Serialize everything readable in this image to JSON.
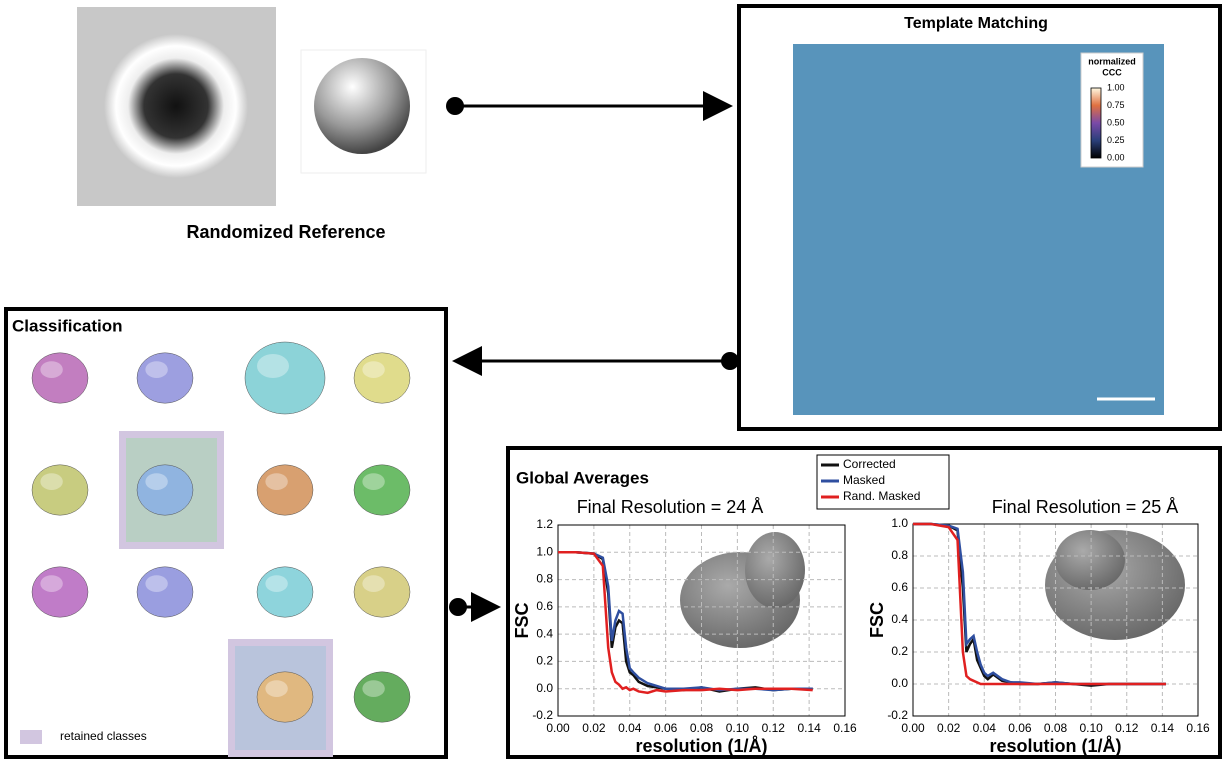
{
  "reference": {
    "label": "Randomized Reference"
  },
  "template_matching": {
    "title": "Template Matching",
    "colorbar_title": [
      "normalized",
      "CCC"
    ],
    "colorbar_ticks": [
      "1.00",
      "0.75",
      "0.50",
      "0.25",
      "0.00"
    ]
  },
  "classification": {
    "title": "Classification",
    "key_label": "retained classes"
  },
  "global_averages": {
    "title": "Global Averages"
  },
  "chart_data": [
    {
      "type": "line",
      "title": "Final Resolution =   24 Å",
      "x_label": "resolution (1/Å)",
      "y_label": "FSC",
      "x": [
        0,
        0.01,
        0.02,
        0.025,
        0.028,
        0.03,
        0.032,
        0.034,
        0.036,
        0.038,
        0.04,
        0.042,
        0.045,
        0.05,
        0.055,
        0.06,
        0.07,
        0.08,
        0.09,
        0.1,
        0.11,
        0.12,
        0.13,
        0.142
      ],
      "series": [
        {
          "name": "Corrected",
          "color": "#111111",
          "values": [
            1,
            1,
            0.99,
            0.95,
            0.7,
            0.3,
            0.45,
            0.5,
            0.48,
            0.2,
            0.12,
            0.1,
            0.05,
            0.02,
            0.01,
            0,
            -0.01,
            0.01,
            -0.02,
            0,
            0.01,
            -0.01,
            0,
            0
          ]
        },
        {
          "name": "Masked",
          "color": "#2f4fa0",
          "values": [
            1,
            1,
            0.99,
            0.96,
            0.75,
            0.35,
            0.5,
            0.57,
            0.55,
            0.3,
            0.15,
            0.12,
            0.08,
            0.04,
            0.02,
            0,
            0,
            0.01,
            -0.01,
            0,
            0,
            -0.01,
            0,
            0
          ]
        },
        {
          "name": "Rand. Masked",
          "color": "#e02020",
          "values": [
            1,
            1,
            0.99,
            0.9,
            0.3,
            0.12,
            0.05,
            0.03,
            0,
            0.01,
            -0.01,
            0,
            -0.02,
            -0.03,
            -0.01,
            -0.02,
            -0.01,
            -0.01,
            0,
            -0.01,
            0,
            0,
            0,
            -0.01
          ]
        }
      ],
      "xlim": [
        0,
        0.16
      ],
      "ylim": [
        -0.2,
        1.2
      ],
      "xticks": [
        {
          "value": 0,
          "label": "0.00"
        },
        {
          "value": 0.02,
          "label": "0.02"
        },
        {
          "value": 0.04,
          "label": "0.04"
        },
        {
          "value": 0.06,
          "label": "0.06"
        },
        {
          "value": 0.08,
          "label": "0.08"
        },
        {
          "value": 0.1,
          "label": "0.10"
        },
        {
          "value": 0.12,
          "label": "0.12"
        },
        {
          "value": 0.14,
          "label": "0.14"
        },
        {
          "value": 0.16,
          "label": "0.16"
        }
      ],
      "yticks": [
        -0.2,
        {
          "value": 0,
          "label": "0.0"
        },
        0.2,
        0.4,
        0.6,
        0.8,
        {
          "value": 1,
          "label": "1.0"
        },
        1.2
      ],
      "grid": true,
      "legend": true
    },
    {
      "type": "line",
      "title": "Final Resolution =   25 Å",
      "x_label": "resolution (1/Å)",
      "y_label": "FSC",
      "x": [
        0,
        0.01,
        0.02,
        0.025,
        0.028,
        0.03,
        0.032,
        0.034,
        0.036,
        0.038,
        0.04,
        0.042,
        0.045,
        0.05,
        0.055,
        0.06,
        0.07,
        0.08,
        0.09,
        0.1,
        0.11,
        0.12,
        0.13,
        0.142
      ],
      "series": [
        {
          "color": "#111111",
          "values": [
            1,
            1,
            0.99,
            0.96,
            0.6,
            0.2,
            0.25,
            0.28,
            0.15,
            0.1,
            0.05,
            0.03,
            0.06,
            0.02,
            0.01,
            0,
            0,
            0.01,
            0,
            -0.01,
            0,
            0,
            0,
            0
          ]
        },
        {
          "color": "#2f4fa0",
          "values": [
            1,
            1,
            0.99,
            0.97,
            0.7,
            0.25,
            0.28,
            0.3,
            0.2,
            0.12,
            0.07,
            0.05,
            0.07,
            0.03,
            0.01,
            0.01,
            0,
            0.01,
            0,
            0,
            0,
            0,
            0,
            0
          ]
        },
        {
          "color": "#e02020",
          "values": [
            1,
            1,
            0.98,
            0.9,
            0.2,
            0.05,
            0.03,
            0.02,
            0.01,
            0,
            0,
            0,
            0,
            0,
            0,
            0,
            0,
            0,
            0,
            0,
            0,
            0,
            0,
            0
          ]
        }
      ],
      "xlim": [
        0,
        0.16
      ],
      "ylim": [
        -0.2,
        1
      ],
      "xticks": [
        {
          "value": 0,
          "label": "0.00"
        },
        {
          "value": 0.02,
          "label": "0.02"
        },
        {
          "value": 0.04,
          "label": "0.04"
        },
        {
          "value": 0.06,
          "label": "0.06"
        },
        {
          "value": 0.08,
          "label": "0.08"
        },
        {
          "value": 0.1,
          "label": "0.10"
        },
        {
          "value": 0.12,
          "label": "0.12"
        },
        {
          "value": 0.14,
          "label": "0.14"
        },
        {
          "value": 0.16,
          "label": "0.16"
        }
      ],
      "yticks": [
        -0.2,
        {
          "value": 0,
          "label": "0.0"
        },
        0.2,
        0.4,
        0.6,
        0.8,
        {
          "value": 1,
          "label": "1.0"
        }
      ],
      "grid": true,
      "legend": false
    }
  ]
}
